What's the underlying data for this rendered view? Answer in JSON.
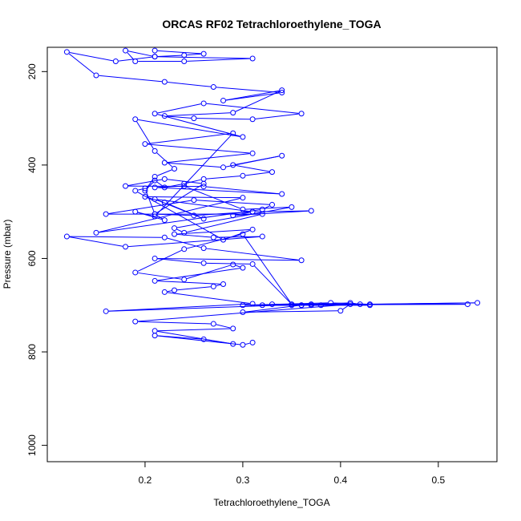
{
  "chart_data": {
    "type": "line",
    "title": "ORCAS RF02 Tetrachloroethylene_TOGA",
    "xlabel": "Tetrachloroethylene_TOGA",
    "ylabel": "Pressure (mbar)",
    "xlim": [
      0.1,
      0.56
    ],
    "ylim": [
      1035,
      148
    ],
    "y_reversed": true,
    "x_ticks": [
      0.2,
      0.3,
      0.4,
      0.5
    ],
    "x_tick_labels": [
      "0.2",
      "0.3",
      "0.4",
      "0.5"
    ],
    "y_ticks": [
      200,
      400,
      600,
      800,
      1000
    ],
    "y_tick_labels": [
      "200",
      "400",
      "600",
      "800",
      "1000"
    ],
    "grid": false,
    "legend": "none",
    "series_color": "#0000ff",
    "marker": "open-circle",
    "series": [
      {
        "x": [
          0.21,
          0.26,
          0.24,
          0.21,
          0.31,
          0.24,
          0.19,
          0.18,
          0.21,
          0.17,
          0.12,
          0.15,
          0.22,
          0.27,
          0.34,
          0.28,
          0.34,
          0.29,
          0.22,
          0.25,
          0.31,
          0.36,
          0.26,
          0.21,
          0.3,
          0.19,
          0.21,
          0.23,
          0.21,
          0.2,
          0.21,
          0.22,
          0.24,
          0.26,
          0.3,
          0.33,
          0.29,
          0.34,
          0.28,
          0.22,
          0.31,
          0.2,
          0.29,
          0.21,
          0.19,
          0.22,
          0.21,
          0.25,
          0.31,
          0.37,
          0.29,
          0.31,
          0.21,
          0.26,
          0.22,
          0.2,
          0.3,
          0.15,
          0.32,
          0.33,
          0.25,
          0.16,
          0.32,
          0.24,
          0.23,
          0.35,
          0.3,
          0.24,
          0.21,
          0.34,
          0.26,
          0.18,
          0.22,
          0.26,
          0.21,
          0.2,
          0.19,
          0.28,
          0.31,
          0.23,
          0.27,
          0.32,
          0.18,
          0.12,
          0.22,
          0.26,
          0.36,
          0.21,
          0.26,
          0.31,
          0.35,
          0.3,
          0.24,
          0.19,
          0.24,
          0.29,
          0.3,
          0.21,
          0.28,
          0.27,
          0.23,
          0.22,
          0.31,
          0.16,
          0.41,
          0.42,
          0.33,
          0.36,
          0.35,
          0.54,
          0.37,
          0.38,
          0.43,
          0.39,
          0.3,
          0.43,
          0.32,
          0.53,
          0.37,
          0.36,
          0.3,
          0.4,
          0.41,
          0.19,
          0.27,
          0.29,
          0.21,
          0.29,
          0.26,
          0.21,
          0.3,
          0.31
        ],
        "y": [
          155,
          162,
          165,
          168,
          172,
          178,
          178,
          155,
          168,
          178,
          158,
          208,
          222,
          233,
          245,
          262,
          240,
          288,
          295,
          300,
          302,
          290,
          268,
          290,
          340,
          302,
          370,
          408,
          425,
          455,
          433,
          448,
          440,
          430,
          423,
          415,
          400,
          380,
          405,
          395,
          375,
          355,
          332,
          510,
          500,
          518,
          505,
          508,
          500,
          498,
          508,
          500,
          473,
          515,
          480,
          468,
          470,
          545,
          495,
          485,
          475,
          505,
          505,
          545,
          535,
          490,
          495,
          445,
          448,
          462,
          446,
          445,
          430,
          440,
          505,
          450,
          455,
          560,
          538,
          548,
          555,
          553,
          575,
          553,
          555,
          578,
          604,
          600,
          610,
          612,
          698,
          548,
          580,
          630,
          645,
          613,
          620,
          648,
          655,
          660,
          668,
          672,
          697,
          713,
          695,
          698,
          698,
          700,
          700,
          695,
          700,
          700,
          698,
          695,
          700,
          700,
          700,
          698,
          698,
          700,
          715,
          712,
          698,
          735,
          740,
          750,
          755,
          783,
          773,
          765,
          785,
          780
        ]
      }
    ]
  }
}
